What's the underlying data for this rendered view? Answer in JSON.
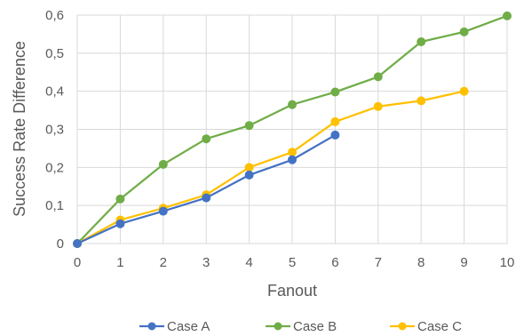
{
  "chart_data": {
    "type": "line",
    "x": [
      0,
      1,
      2,
      3,
      4,
      5,
      6,
      7,
      8,
      9,
      10
    ],
    "xlabel": "Fanout",
    "ylabel": "Success Rate Difference",
    "xlim": [
      0,
      10
    ],
    "ylim": [
      0,
      0.6
    ],
    "x_ticks": [
      "0",
      "1",
      "2",
      "3",
      "4",
      "5",
      "6",
      "7",
      "8",
      "9",
      "10"
    ],
    "y_ticks": [
      "0",
      "0,1",
      "0,2",
      "0,3",
      "0,4",
      "0,5",
      "0,6"
    ],
    "grid": "vertical and horizontal",
    "legend_position": "bottom",
    "series": [
      {
        "name": "Case A",
        "color": "#4472C4",
        "x": [
          0,
          1,
          2,
          3,
          4,
          5,
          6
        ],
        "values": [
          0,
          0.052,
          0.085,
          0.12,
          0.18,
          0.22,
          0.285
        ]
      },
      {
        "name": "Case B",
        "color": "#70AD47",
        "x": [
          0,
          1,
          2,
          3,
          4,
          5,
          6,
          7,
          8,
          9,
          10
        ],
        "values": [
          0,
          0.117,
          0.208,
          0.275,
          0.31,
          0.365,
          0.398,
          0.438,
          0.53,
          0.556,
          0.598
        ]
      },
      {
        "name": "Case C",
        "color": "#FFC000",
        "x": [
          0,
          1,
          2,
          3,
          4,
          5,
          6,
          7,
          8,
          9
        ],
        "values": [
          0,
          0.062,
          0.093,
          0.128,
          0.2,
          0.24,
          0.32,
          0.36,
          0.375,
          0.4
        ]
      }
    ]
  }
}
